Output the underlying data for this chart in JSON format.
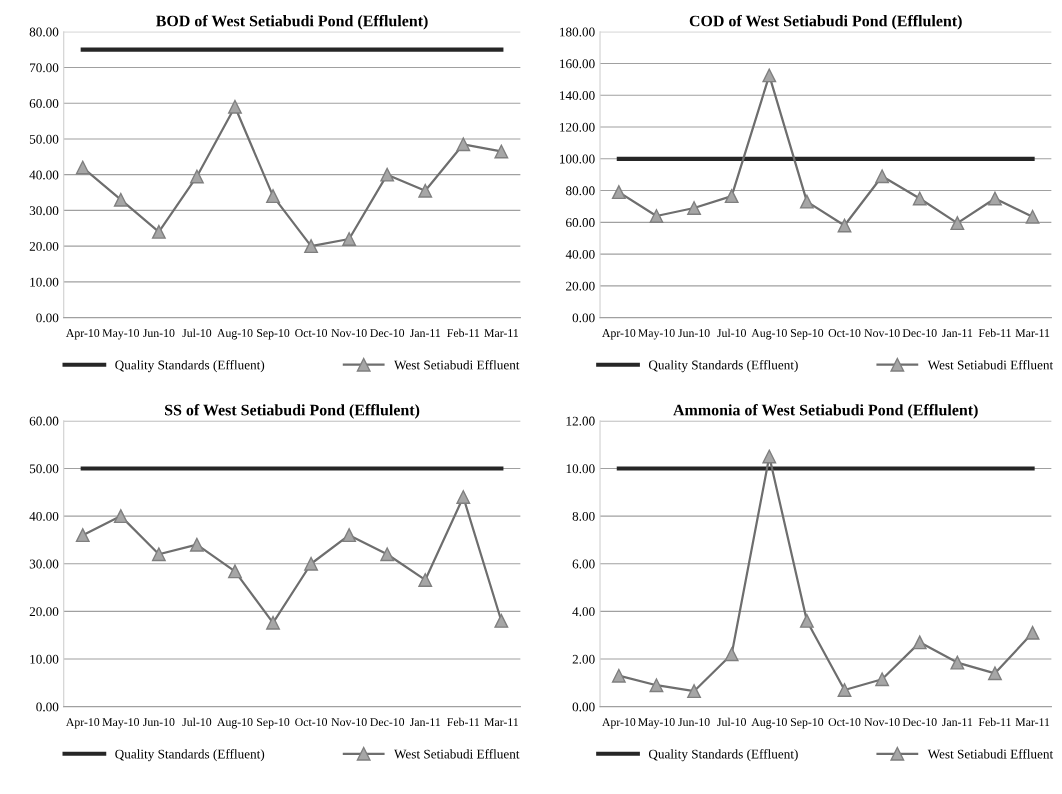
{
  "chart_data": [
    {
      "type": "line",
      "title": "BOD of West Setiabudi Pond (Efflulent)",
      "categories": [
        "Apr-10",
        "May-10",
        "Jun-10",
        "Jul-10",
        "Aug-10",
        "Sep-10",
        "Oct-10",
        "Nov-10",
        "Dec-10",
        "Jan-11",
        "Feb-11",
        "Mar-11"
      ],
      "series": [
        {
          "name": "Quality Standards (Effluent)",
          "color": "#262626",
          "marker": "none",
          "values": [
            75,
            75,
            75,
            75,
            75,
            75,
            75,
            75,
            75,
            75,
            75,
            75
          ]
        },
        {
          "name": "West Setiabudi Effluent",
          "color": "#6e6e6e",
          "marker": "triangle",
          "values": [
            42,
            33,
            24,
            39.5,
            59,
            34,
            20,
            22,
            40,
            35.5,
            48.5,
            46.5
          ]
        }
      ],
      "ylim": [
        0,
        80
      ],
      "yticks": [
        {
          "value": 0,
          "label": "0.00"
        },
        {
          "value": 10,
          "label": "10.00"
        },
        {
          "value": 20,
          "label": "20.00"
        },
        {
          "value": 30,
          "label": "30.00"
        },
        {
          "value": 40,
          "label": "40.00"
        },
        {
          "value": 50,
          "label": "50.00"
        },
        {
          "value": 60,
          "label": "60.00"
        },
        {
          "value": 70,
          "label": "70.00"
        },
        {
          "value": 80,
          "label": "80.00"
        }
      ],
      "grid": "y",
      "legend": "bottom"
    },
    {
      "type": "line",
      "title": "COD of West Setiabudi Pond (Efflulent)",
      "categories": [
        "Apr-10",
        "May-10",
        "Jun-10",
        "Jul-10",
        "Aug-10",
        "Sep-10",
        "Oct-10",
        "Nov-10",
        "Dec-10",
        "Jan-11",
        "Feb-11",
        "Mar-11"
      ],
      "series": [
        {
          "name": "Quality Standards (Effluent)",
          "color": "#262626",
          "marker": "none",
          "values": [
            100,
            100,
            100,
            100,
            100,
            100,
            100,
            100,
            100,
            100,
            100,
            100
          ]
        },
        {
          "name": "West Setiabudi Effluent",
          "color": "#6e6e6e",
          "marker": "triangle",
          "values": [
            79,
            64,
            69,
            76.5,
            152.5,
            73,
            58,
            89,
            75,
            59.5,
            75,
            63.5
          ]
        }
      ],
      "ylim": [
        0,
        180
      ],
      "yticks": [
        {
          "value": 0,
          "label": "0.00"
        },
        {
          "value": 20,
          "label": "20.00"
        },
        {
          "value": 40,
          "label": "40.00"
        },
        {
          "value": 60,
          "label": "60.00"
        },
        {
          "value": 80,
          "label": "80.00"
        },
        {
          "value": 100,
          "label": "100.00"
        },
        {
          "value": 120,
          "label": "120.00"
        },
        {
          "value": 140,
          "label": "140.00"
        },
        {
          "value": 160,
          "label": "160.00"
        },
        {
          "value": 180,
          "label": "180.00"
        }
      ],
      "grid": "y",
      "legend": "bottom"
    },
    {
      "type": "line",
      "title": "SS of West Setiabudi Pond (Efflulent)",
      "categories": [
        "Apr-10",
        "May-10",
        "Jun-10",
        "Jul-10",
        "Aug-10",
        "Sep-10",
        "Oct-10",
        "Nov-10",
        "Dec-10",
        "Jan-11",
        "Feb-11",
        "Mar-11"
      ],
      "series": [
        {
          "name": "Quality Standards (Effluent)",
          "color": "#262626",
          "marker": "none",
          "values": [
            50,
            50,
            50,
            50,
            50,
            50,
            50,
            50,
            50,
            50,
            50,
            50
          ]
        },
        {
          "name": "West Setiabudi Effluent",
          "color": "#6e6e6e",
          "marker": "triangle",
          "values": [
            36,
            40,
            32,
            34,
            28.4,
            17.6,
            30,
            36,
            32,
            26.6,
            44,
            18
          ]
        }
      ],
      "ylim": [
        0,
        60
      ],
      "yticks": [
        {
          "value": 0,
          "label": "0.00"
        },
        {
          "value": 10,
          "label": "10.00"
        },
        {
          "value": 20,
          "label": "20.00"
        },
        {
          "value": 30,
          "label": "30.00"
        },
        {
          "value": 40,
          "label": "40.00"
        },
        {
          "value": 50,
          "label": "50.00"
        },
        {
          "value": 60,
          "label": "60.00"
        }
      ],
      "grid": "y",
      "legend": "bottom"
    },
    {
      "type": "line",
      "title": "Ammonia of West Setiabudi Pond (Efflulent)",
      "categories": [
        "Apr-10",
        "May-10",
        "Jun-10",
        "Jul-10",
        "Aug-10",
        "Sep-10",
        "Oct-10",
        "Nov-10",
        "Dec-10",
        "Jan-11",
        "Feb-11",
        "Mar-11"
      ],
      "series": [
        {
          "name": "Quality Standards (Effluent)",
          "color": "#262626",
          "marker": "none",
          "values": [
            10,
            10,
            10,
            10,
            10,
            10,
            10,
            10,
            10,
            10,
            10,
            10
          ]
        },
        {
          "name": "West Setiabudi Effluent",
          "color": "#6e6e6e",
          "marker": "triangle",
          "values": [
            1.3,
            0.9,
            0.65,
            2.2,
            10.5,
            3.6,
            0.7,
            1.15,
            2.7,
            1.85,
            1.4,
            3.1
          ]
        }
      ],
      "ylim": [
        0,
        12
      ],
      "yticks": [
        {
          "value": 0,
          "label": "0.00"
        },
        {
          "value": 2,
          "label": "2.00"
        },
        {
          "value": 4,
          "label": "4.00"
        },
        {
          "value": 6,
          "label": "6.00"
        },
        {
          "value": 8,
          "label": "8.00"
        },
        {
          "value": 10,
          "label": "10.00"
        },
        {
          "value": 12,
          "label": "12.00"
        }
      ],
      "grid": "y",
      "legend": "bottom"
    }
  ]
}
